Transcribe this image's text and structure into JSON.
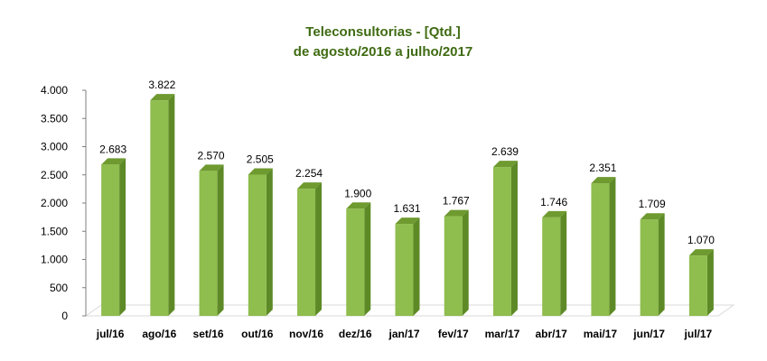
{
  "colors": {
    "title": "#3f6b12",
    "bar_front": "#8fbd4e",
    "bar_side": "#5d8a26",
    "bar_top": "#6e9a30",
    "axis": "#7f7f7f",
    "floor": "#d9d9d9"
  },
  "chart_data": {
    "type": "bar",
    "title": "Teleconsultorias -  [Qtd.]",
    "subtitle": "de agosto/2016 a julho/2017",
    "xlabel": "",
    "ylabel": "",
    "ylim": [
      0,
      4000
    ],
    "yticks": [
      0,
      500,
      1000,
      1500,
      2000,
      2500,
      3000,
      3500,
      4000
    ],
    "ytick_labels": [
      "0",
      "500",
      "1.000",
      "1.500",
      "2.000",
      "2.500",
      "3.000",
      "3.500",
      "4.000"
    ],
    "grid": false,
    "legend": "none",
    "categories": [
      "jul/16",
      "ago/16",
      "set/16",
      "out/16",
      "nov/16",
      "dez/16",
      "jan/17",
      "fev/17",
      "mar/17",
      "abr/17",
      "mai/17",
      "jun/17",
      "jul/17"
    ],
    "values": [
      2683,
      3822,
      2570,
      2505,
      2254,
      1900,
      1631,
      1767,
      2639,
      1746,
      2351,
      1709,
      1070
    ],
    "value_labels": [
      "2.683",
      "3.822",
      "2.570",
      "2.505",
      "2.254",
      "1.900",
      "1.631",
      "1.767",
      "2.639",
      "1.746",
      "2.351",
      "1.709",
      "1.070"
    ]
  }
}
